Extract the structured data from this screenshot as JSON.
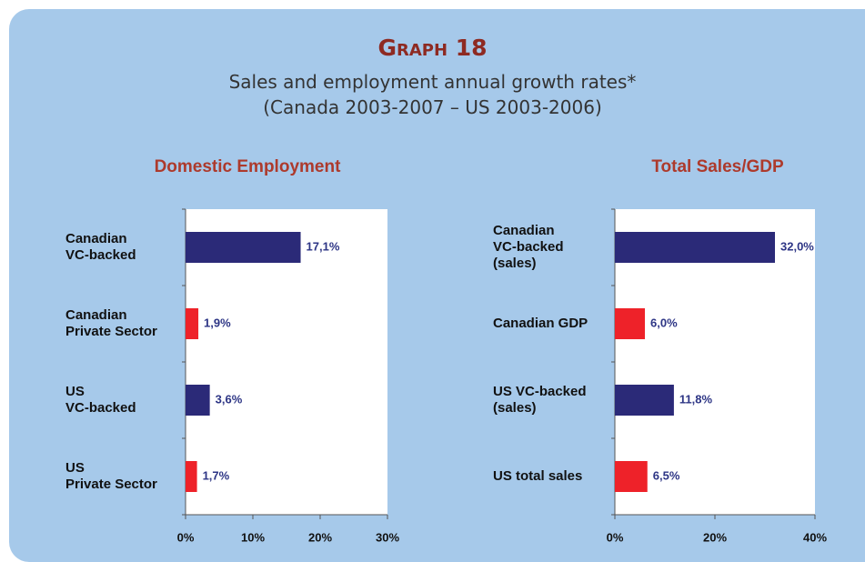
{
  "header": {
    "title": "Graph 18",
    "subtitle": "Sales and employment annual growth rates*",
    "subtitle2": "(Canada 2003-2007 – US 2003-2006)"
  },
  "chart_data": [
    {
      "type": "bar",
      "orientation": "horizontal",
      "title": "Domestic Employment",
      "categories": [
        "Canadian\nVC-backed",
        "Canadian\nPrivate Sector",
        "US\nVC-backed",
        "US\nPrivate Sector"
      ],
      "values": [
        17.1,
        1.9,
        3.6,
        1.7
      ],
      "value_labels": [
        "17,1%",
        "1,9%",
        "3,6%",
        "1,7%"
      ],
      "colors": [
        "#2b2a78",
        "#ee2229",
        "#2b2a78",
        "#ee2229"
      ],
      "xlim": [
        0,
        30
      ],
      "xticks": [
        {
          "value": 0,
          "label": "0%"
        },
        {
          "value": 10,
          "label": "10%"
        },
        {
          "value": 20,
          "label": "20%"
        },
        {
          "value": 30,
          "label": "30%"
        }
      ]
    },
    {
      "type": "bar",
      "orientation": "horizontal",
      "title": "Total Sales/GDP",
      "categories": [
        "Canadian\nVC-backed\n(sales)",
        "Canadian GDP",
        "US VC-backed\n(sales)",
        "US total sales"
      ],
      "values": [
        32.0,
        6.0,
        11.8,
        6.5
      ],
      "value_labels": [
        "32,0%",
        "6,0%",
        "11,8%",
        "6,5%"
      ],
      "colors": [
        "#2b2a78",
        "#ee2229",
        "#2b2a78",
        "#ee2229"
      ],
      "xlim": [
        0,
        40
      ],
      "xticks": [
        {
          "value": 0,
          "label": "0%"
        },
        {
          "value": 20,
          "label": "20%"
        },
        {
          "value": 40,
          "label": "40%"
        }
      ]
    }
  ]
}
